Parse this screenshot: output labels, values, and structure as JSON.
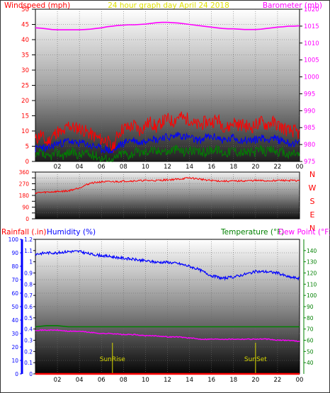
{
  "header": {
    "left_title": "Windspeed (mph)",
    "center_title": "24 hour graph day   April 24 2018",
    "right_title": "Barometer (mb)"
  },
  "colors": {
    "wind_gust": "#ff0000",
    "wind_avg": "#0000ff",
    "wind_low": "#008000",
    "barometer": "#ff00ff",
    "direction": "#ff0000",
    "humidity": "#0000ff",
    "temperature": "#008000",
    "dew_point": "#ff00ff",
    "rainfall": "#ff0000",
    "sun_marker": "#d8d800",
    "title_center": "#e0e000"
  },
  "chart_data": [
    {
      "type": "line",
      "id": "wind_baro",
      "x_ticks": [
        "02",
        "04",
        "06",
        "08",
        "10",
        "12",
        "14",
        "16",
        "18",
        "20",
        "22",
        "00"
      ],
      "x": [
        0,
        0.5,
        1,
        1.5,
        2,
        2.5,
        3,
        3.5,
        4,
        4.5,
        5,
        5.5,
        6,
        6.5,
        7,
        7.5,
        8,
        8.5,
        9,
        9.5,
        10,
        10.5,
        11,
        11.5,
        12,
        12.5,
        13,
        13.5,
        14,
        14.5,
        15,
        15.5,
        16,
        16.5,
        17,
        17.5,
        18,
        18.5,
        19,
        19.5,
        20,
        20.5,
        21,
        21.5,
        22,
        22.5,
        23,
        23.5,
        24
      ],
      "left_axis": {
        "label": "Windspeed (mph)",
        "ylim": [
          0,
          50
        ],
        "ticks": [
          0,
          5,
          10,
          15,
          20,
          25,
          30,
          35,
          40,
          45,
          50
        ]
      },
      "right_axis": {
        "label": "Barometer (mb)",
        "ylim": [
          975,
          1020
        ],
        "ticks": [
          975,
          980,
          985,
          990,
          995,
          1000,
          1005,
          1010,
          1015,
          1020
        ]
      },
      "series": [
        {
          "name": "Windspeed",
          "key": "wind_gust",
          "axis": "left",
          "values": [
            7,
            9,
            6,
            8,
            10,
            9,
            12,
            11,
            11,
            10,
            9,
            8,
            7,
            7,
            4,
            9,
            11,
            11,
            12,
            10,
            12,
            13,
            11,
            13,
            14,
            13,
            15,
            14,
            14,
            12,
            12,
            13,
            13,
            14,
            12,
            11,
            13,
            12,
            12,
            11,
            12,
            13,
            12,
            13,
            12,
            11,
            10,
            10,
            9
          ]
        },
        {
          "name": "Windspeed",
          "key": "wind_avg",
          "axis": "left",
          "values": [
            4,
            5,
            4,
            5,
            6,
            6,
            7,
            6,
            6,
            6,
            5,
            5,
            4,
            4,
            3,
            5,
            6,
            7,
            7,
            6,
            7,
            8,
            7,
            8,
            8,
            8,
            9,
            8,
            8,
            7,
            7,
            8,
            8,
            8,
            7,
            7,
            8,
            7,
            7,
            7,
            7,
            8,
            7,
            8,
            7,
            7,
            6,
            6,
            6
          ]
        },
        {
          "name": "Windspeed",
          "key": "wind_low",
          "axis": "left",
          "values": [
            1,
            3,
            1,
            2,
            3,
            2,
            3,
            3,
            2,
            3,
            2,
            2,
            1,
            1,
            0,
            2,
            3,
            2,
            3,
            3,
            3,
            4,
            3,
            4,
            3,
            4,
            4,
            3,
            4,
            3,
            3,
            3,
            4,
            4,
            3,
            3,
            4,
            3,
            3,
            3,
            3,
            4,
            3,
            4,
            3,
            3,
            2,
            3,
            2
          ]
        },
        {
          "name": "Barometer",
          "key": "barometer",
          "axis": "right",
          "values": [
            1014.5,
            1014.4,
            1014.2,
            1014.0,
            1013.9,
            1013.9,
            1013.9,
            1013.9,
            1013.9,
            1014.0,
            1014.1,
            1014.3,
            1014.5,
            1014.8,
            1015.0,
            1015.2,
            1015.3,
            1015.4,
            1015.4,
            1015.5,
            1015.6,
            1015.8,
            1016.0,
            1016.1,
            1016.1,
            1016.0,
            1015.9,
            1015.7,
            1015.5,
            1015.3,
            1015.1,
            1014.9,
            1014.7,
            1014.5,
            1014.3,
            1014.2,
            1014.2,
            1014.1,
            1014.0,
            1014.0,
            1014.0,
            1014.1,
            1014.3,
            1014.5,
            1014.7,
            1014.8,
            1015.0,
            1015.0,
            1015.1
          ]
        }
      ]
    },
    {
      "type": "line",
      "id": "direction",
      "x": [
        0,
        1,
        2,
        3,
        4,
        5,
        6,
        7,
        8,
        9,
        10,
        11,
        12,
        13,
        14,
        15,
        16,
        17,
        18,
        19,
        20,
        21,
        22,
        23,
        24
      ],
      "y_axis": {
        "ylim": [
          0,
          360
        ],
        "ticks": [
          0,
          45,
          90,
          135,
          180,
          225,
          270,
          315,
          360
        ],
        "compass": [
          "N",
          "W",
          "S",
          "E",
          "N"
        ]
      },
      "series": [
        {
          "name": "Wind direction",
          "key": "direction",
          "values": [
            200,
            205,
            210,
            215,
            240,
            275,
            285,
            285,
            290,
            292,
            295,
            295,
            300,
            305,
            315,
            305,
            295,
            290,
            290,
            292,
            295,
            292,
            296,
            295,
            293
          ]
        }
      ]
    },
    {
      "type": "line",
      "id": "humidity_temp",
      "x_ticks": [
        "02",
        "04",
        "06",
        "08",
        "10",
        "12",
        "14",
        "16",
        "18",
        "20",
        "22",
        "00"
      ],
      "x": [
        0,
        1,
        2,
        3,
        4,
        5,
        6,
        7,
        8,
        9,
        10,
        11,
        12,
        13,
        14,
        15,
        16,
        17,
        18,
        19,
        20,
        21,
        22,
        23,
        24
      ],
      "rain_axis": {
        "label": "Rainfall (.in)",
        "ylim": [
          0,
          1.2
        ],
        "ticks": [
          0,
          0.1,
          0.2,
          0.3,
          0.4,
          0.5,
          0.6,
          0.7,
          0.8,
          0.9,
          1,
          1.1,
          1.2
        ]
      },
      "humidity_axis": {
        "label": "Humidity (%)",
        "ylim": [
          0,
          100
        ],
        "ticks": [
          0,
          10,
          20,
          30,
          40,
          50,
          60,
          70,
          80,
          90,
          100
        ]
      },
      "temp_axis": {
        "label": "Temperature (°F)",
        "label2": "Dew Point (°F)",
        "ylim": [
          30,
          150
        ],
        "ticks": [
          40,
          50,
          60,
          70,
          80,
          90,
          100,
          110,
          120,
          130,
          140
        ]
      },
      "sun_events": [
        {
          "label": "SunRise",
          "x": 7
        },
        {
          "label": "SunSet",
          "x": 20
        }
      ],
      "series": [
        {
          "name": "Humidity",
          "key": "humidity",
          "axis": "humidity",
          "values": [
            89,
            90,
            90,
            91,
            91,
            89,
            88,
            87,
            86,
            85,
            84,
            83,
            83,
            82,
            80,
            77,
            73,
            71,
            72,
            74,
            76,
            76,
            75,
            72,
            71
          ]
        },
        {
          "name": "Temperature",
          "key": "temperature",
          "axis": "temp",
          "values": [
            72,
            73,
            73,
            72,
            72,
            72,
            72,
            72,
            72,
            72,
            72,
            72,
            72,
            72,
            72,
            72,
            72,
            72,
            72,
            72,
            72,
            72,
            72,
            72,
            72
          ]
        },
        {
          "name": "Dew Point",
          "key": "dew_point",
          "axis": "temp",
          "values": [
            69,
            69,
            69,
            68,
            68,
            67,
            66,
            66,
            65,
            65,
            64,
            64,
            63,
            63,
            62,
            61,
            61,
            61,
            61,
            61,
            61,
            61,
            60,
            60,
            59
          ]
        },
        {
          "name": "Rainfall",
          "key": "rainfall",
          "axis": "rain",
          "values": [
            0,
            0,
            0,
            0,
            0,
            0,
            0,
            0,
            0,
            0,
            0,
            0,
            0,
            0,
            0,
            0,
            0,
            0,
            0,
            0,
            0,
            0,
            0,
            0,
            0
          ]
        }
      ]
    }
  ]
}
